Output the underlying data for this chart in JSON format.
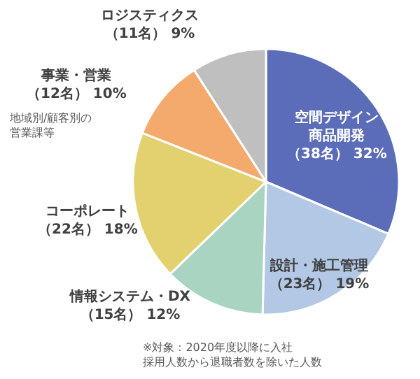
{
  "chart_data": {
    "type": "pie",
    "categories": [
      "空間デザイン商品開発",
      "設計・施工管理",
      "情報システム・DX",
      "コーポレート",
      "事業・営業",
      "ロジスティクス"
    ],
    "values": [
      38,
      23,
      15,
      22,
      12,
      11
    ],
    "value_labels": [
      "（38名） 32%",
      "（23名） 19%",
      "（15名） 12%",
      "（22名） 18%",
      "（12名） 10%",
      "（11名） 9%"
    ],
    "colors": [
      "#5b6db8",
      "#b3c8e4",
      "#a9d4c2",
      "#e3d16f",
      "#f4aa6c",
      "#bfbfbf"
    ],
    "legend": false,
    "annotations": [
      "地域別/顧客別の営業課等",
      "※対象：2020年度以降に入社採用人数から退職者数を除いた人数"
    ]
  }
}
